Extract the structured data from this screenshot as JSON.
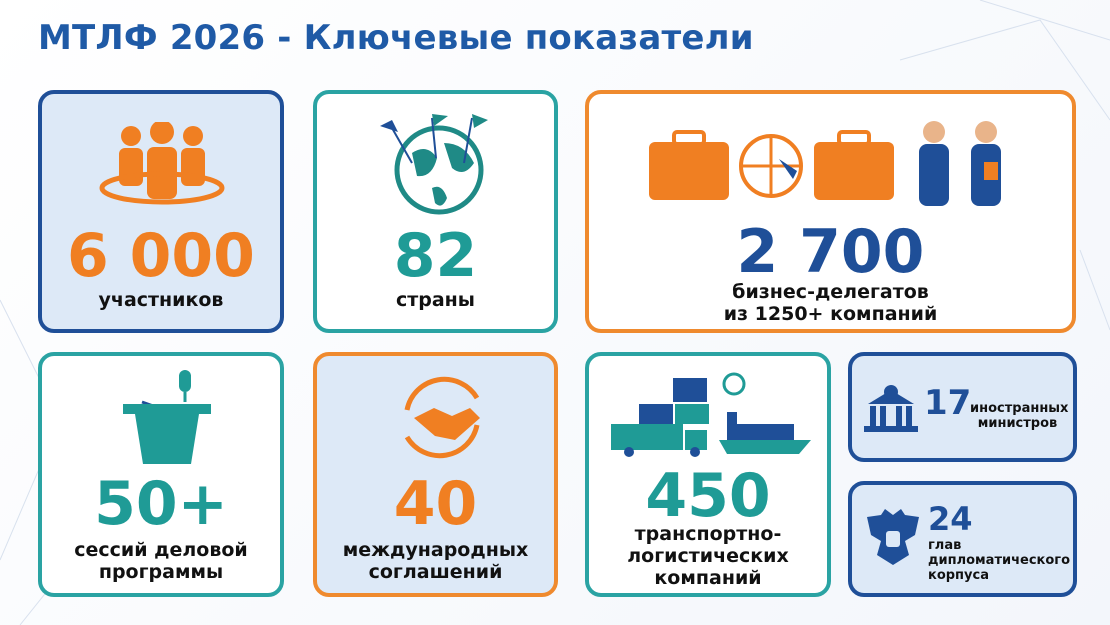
{
  "title": "МТЛФ 2026 - Ключевые показатели",
  "cards": [
    {
      "value": "6 000",
      "label": [
        "участников"
      ]
    },
    {
      "value": "82",
      "label": [
        "страны"
      ]
    },
    {
      "value": "2 700",
      "label": [
        "бизнес-делегатов",
        "из 1250+ компаний"
      ]
    },
    {
      "value": "50+",
      "label": [
        "сессий деловой",
        "программы"
      ]
    },
    {
      "value": "40",
      "label": [
        "международных",
        "соглашений"
      ]
    },
    {
      "value": "450",
      "label": [
        "транспортно-",
        "логистических",
        "компаний"
      ]
    },
    {
      "value": "17",
      "label": [
        "иностранных",
        "министров"
      ]
    },
    {
      "value": "24",
      "label": [
        "глав",
        "дипломатического",
        "корпуса"
      ]
    }
  ]
}
